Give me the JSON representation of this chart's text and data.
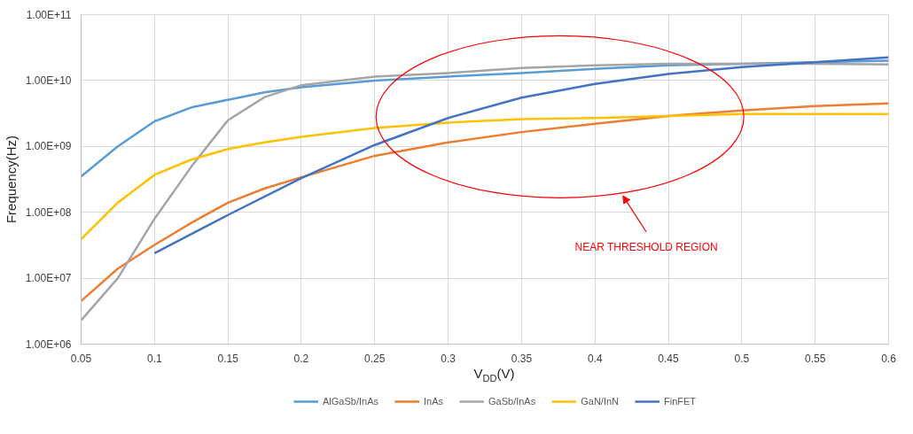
{
  "chart_data": {
    "type": "line",
    "xlabel": "V$_{DD}$(V)",
    "ylabel": "Frequency(Hz)",
    "log": "y",
    "grid": true,
    "legend": "bottom",
    "marker": "none",
    "line_style": "solid",
    "xlim": [
      0.05,
      0.6
    ],
    "xticks": [
      0.05,
      0.1,
      0.15,
      0.2,
      0.25,
      0.3,
      0.35,
      0.4,
      0.45,
      0.5,
      0.55,
      0.6
    ],
    "ylim": [
      1000000.0,
      100000000000.0
    ],
    "yticks": [
      {
        "value": 1000000.0,
        "label": "1.00E+06"
      },
      {
        "value": 10000000.0,
        "label": "1.00E+07"
      },
      {
        "value": 100000000.0,
        "label": "1.00E+08"
      },
      {
        "value": 1000000000.0,
        "label": "1.00E+09"
      },
      {
        "value": 10000000000.0,
        "label": "1.00E+10"
      },
      {
        "value": 100000000000.0,
        "label": "1.00E+11"
      }
    ],
    "x": [
      0.05,
      0.075,
      0.1,
      0.125,
      0.15,
      0.175,
      0.2,
      0.25,
      0.3,
      0.35,
      0.4,
      0.45,
      0.5,
      0.55,
      0.6
    ],
    "series": [
      {
        "name": "AlGaSb/InAs",
        "color": "#5b9bd5",
        "values": [
          350000000.0,
          1000000000.0,
          2400000000.0,
          3900000000.0,
          5100000000.0,
          6600000000.0,
          7900000000.0,
          10000000000.0,
          11500000000.0,
          13000000000.0,
          15000000000.0,
          17000000000.0,
          18000000000.0,
          19000000000.0,
          20000000000.0
        ]
      },
      {
        "name": "InAs",
        "color": "#ed7d31",
        "values": [
          4500000.0,
          14000000.0,
          32000000.0,
          69000000.0,
          140000000.0,
          230000000.0,
          340000000.0,
          720000000.0,
          1150000000.0,
          1650000000.0,
          2200000000.0,
          2900000000.0,
          3500000000.0,
          4100000000.0,
          4500000000.0
        ]
      },
      {
        "name": "GaSb/InAs",
        "color": "#a5a5a5",
        "values": [
          2300000.0,
          10000000.0,
          80000000.0,
          490000000.0,
          2500000000.0,
          5600000000.0,
          8500000000.0,
          11500000000.0,
          13000000000.0,
          15500000000.0,
          17000000000.0,
          18000000000.0,
          18000000000.0,
          18000000000.0,
          17500000000.0
        ]
      },
      {
        "name": "GaN/InN",
        "color": "#ffc000",
        "values": [
          39000000.0,
          140000000.0,
          370000000.0,
          630000000.0,
          910000000.0,
          1150000000.0,
          1400000000.0,
          1900000000.0,
          2300000000.0,
          2600000000.0,
          2700000000.0,
          2900000000.0,
          3100000000.0,
          3100000000.0,
          3100000000.0
        ]
      },
      {
        "name": "FinFET",
        "color": "#4472c4",
        "x": [
          0.1,
          0.15,
          0.2,
          0.25,
          0.3,
          0.35,
          0.4,
          0.45,
          0.5,
          0.55,
          0.6
        ],
        "values": [
          24000000.0,
          91000000.0,
          330000000.0,
          1050000000.0,
          2700000000.0,
          5500000000.0,
          8900000000.0,
          12600000000.0,
          16000000000.0,
          19000000000.0,
          22500000000.0
        ]
      }
    ],
    "annotations": [
      "NEAR THRESHOLD REGION"
    ]
  }
}
